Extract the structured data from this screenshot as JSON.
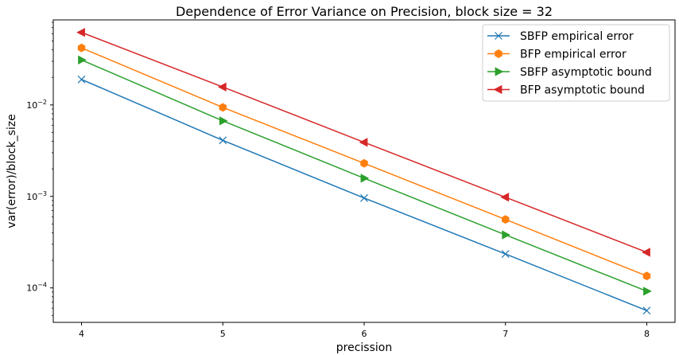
{
  "chart_data": {
    "type": "line",
    "title": "Dependence of Error Variance on Precision, block size = 32",
    "xlabel": "precission",
    "ylabel": "var(error)/block_size",
    "yscale": "log",
    "xlim": [
      3.8,
      8.2
    ],
    "ylim": [
      4.2e-05,
      0.085
    ],
    "grid": false,
    "legend_position": "top-right",
    "x": [
      4,
      5,
      6,
      7,
      8
    ],
    "x_ticks": [
      {
        "value": 4,
        "label": "4"
      },
      {
        "value": 5,
        "label": "5"
      },
      {
        "value": 6,
        "label": "6"
      },
      {
        "value": 7,
        "label": "7"
      },
      {
        "value": 8,
        "label": "8"
      }
    ],
    "y_ticks": [
      {
        "value": 0.01,
        "base": "10",
        "exp": "−2"
      },
      {
        "value": 0.001,
        "base": "10",
        "exp": "−3"
      },
      {
        "value": 0.0001,
        "base": "10",
        "exp": "−4"
      }
    ],
    "series": [
      {
        "name": "SBFP empirical error",
        "color": "#1f77b4",
        "marker": "x",
        "values": [
          0.019,
          0.0041,
          0.00096,
          0.000235,
          5.65e-05
        ]
      },
      {
        "name": "BFP empirical error",
        "color": "#ff7f0e",
        "marker": "hexagon",
        "values": [
          0.042,
          0.0094,
          0.0023,
          0.00056,
          0.000135
        ]
      },
      {
        "name": "SBFP asymptotic bound",
        "color": "#2ca02c",
        "marker": "triangle-right",
        "values": [
          0.031,
          0.0067,
          0.00158,
          0.00038,
          9.2e-05
        ]
      },
      {
        "name": "BFP asymptotic bound",
        "color": "#d62728",
        "marker": "triangle-left",
        "values": [
          0.062,
          0.0157,
          0.0039,
          0.00098,
          0.000245
        ]
      }
    ]
  }
}
